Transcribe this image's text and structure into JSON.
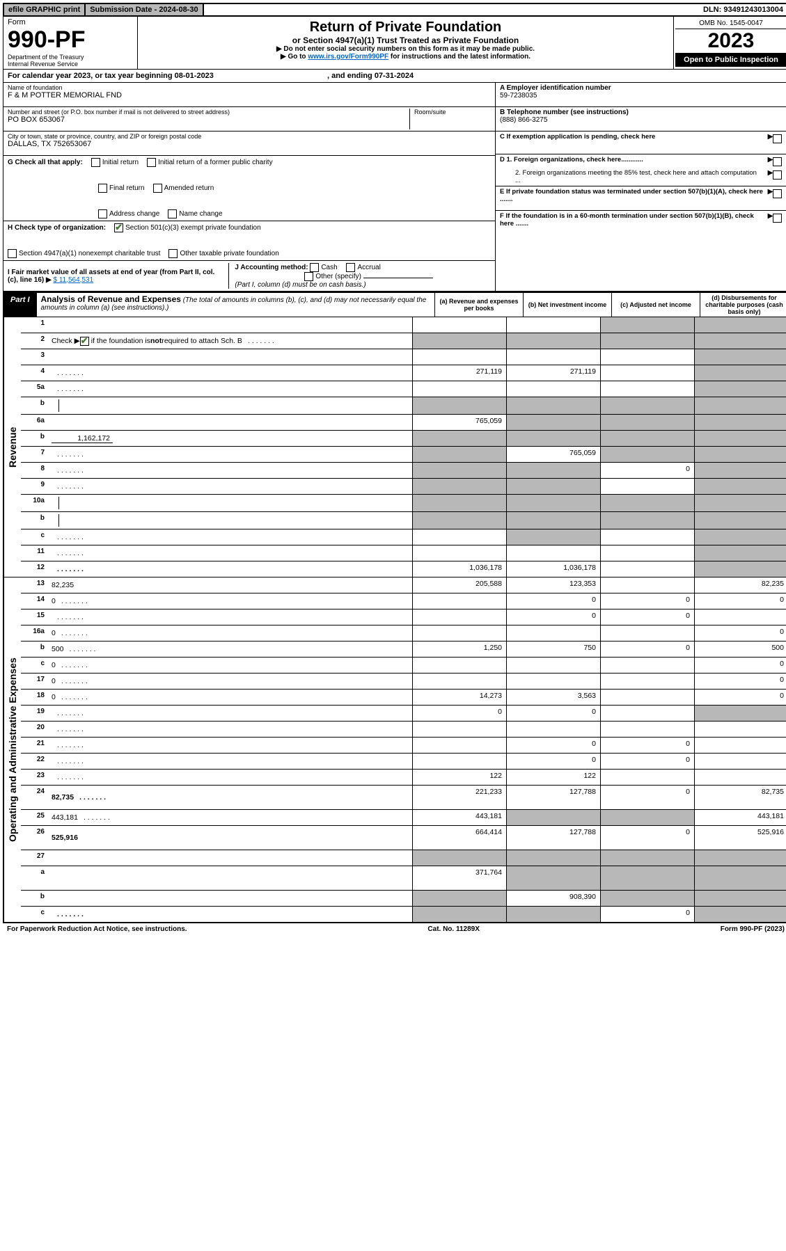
{
  "top": {
    "efile": "efile GRAPHIC print",
    "sub_label": "Submission Date - 2024-08-30",
    "dln": "DLN: 93491243013004"
  },
  "header": {
    "form_word": "Form",
    "form_no": "990-PF",
    "dept": "Department of the Treasury",
    "irs": "Internal Revenue Service",
    "title": "Return of Private Foundation",
    "subtitle": "or Section 4947(a)(1) Trust Treated as Private Foundation",
    "note1": "▶ Do not enter social security numbers on this form as it may be made public.",
    "note2_pre": "▶ Go to ",
    "note2_link": "www.irs.gov/Form990PF",
    "note2_post": " for instructions and the latest information.",
    "omb": "OMB No. 1545-0047",
    "year": "2023",
    "open": "Open to Public Inspection"
  },
  "cal": {
    "text_a": "For calendar year 2023, or tax year beginning 08-01-2023",
    "text_b": ", and ending 07-31-2024"
  },
  "info": {
    "name_lbl": "Name of foundation",
    "name": "F & M POTTER MEMORIAL FND",
    "addr_lbl": "Number and street (or P.O. box number if mail is not delivered to street address)",
    "room_lbl": "Room/suite",
    "addr": "PO BOX 653067",
    "city_lbl": "City or town, state or province, country, and ZIP or foreign postal code",
    "city": "DALLAS, TX  752653067",
    "a_lbl": "A Employer identification number",
    "a_val": "59-7238035",
    "b_lbl": "B Telephone number (see instructions)",
    "b_val": "(888) 866-3275",
    "c_lbl": "C If exemption application is pending, check here",
    "d1": "D 1. Foreign organizations, check here............",
    "d2": "2. Foreign organizations meeting the 85% test, check here and attach computation ...",
    "e": "E  If private foundation status was terminated under section 507(b)(1)(A), check here .......",
    "f": "F  If the foundation is in a 60-month termination under section 507(b)(1)(B), check here .......",
    "g_lbl": "G Check all that apply:",
    "g_opts": [
      "Initial return",
      "Initial return of a former public charity",
      "Final return",
      "Amended return",
      "Address change",
      "Name change"
    ],
    "h_lbl": "H Check type of organization:",
    "h1": "Section 501(c)(3) exempt private foundation",
    "h2": "Section 4947(a)(1) nonexempt charitable trust",
    "h3": "Other taxable private foundation",
    "i_lbl": "I Fair market value of all assets at end of year (from Part II, col. (c), line 16) ▶",
    "i_val": "$  11,564,531",
    "j_lbl": "J Accounting method:",
    "j_cash": "Cash",
    "j_acc": "Accrual",
    "j_other": "Other (specify)",
    "j_note": "(Part I, column (d) must be on cash basis.)"
  },
  "part1": {
    "label": "Part I",
    "title": "Analysis of Revenue and Expenses",
    "title_note": "(The total of amounts in columns (b), (c), and (d) may not necessarily equal the amounts in column (a) (see instructions).)",
    "col_a": "(a)   Revenue and expenses per books",
    "col_b": "(b)   Net investment income",
    "col_c": "(c)   Adjusted net income",
    "col_d": "(d)   Disbursements for charitable purposes (cash basis only)"
  },
  "side": {
    "revenue": "Revenue",
    "expenses": "Operating and Administrative Expenses"
  },
  "rows": [
    {
      "n": "1",
      "d": "",
      "a": "",
      "b": "",
      "c": "",
      "shade_c": true,
      "shade_d": true
    },
    {
      "n": "2",
      "d": "",
      "dots": true,
      "a": "",
      "b": "",
      "c": "",
      "shade_a": true,
      "shade_b": true,
      "shade_c": true,
      "shade_d": true,
      "check_in_desc": true
    },
    {
      "n": "3",
      "d": "",
      "a": "",
      "b": "",
      "c": "",
      "shade_d": true
    },
    {
      "n": "4",
      "d": "",
      "dots": true,
      "a": "271,119",
      "b": "271,119",
      "c": "",
      "shade_d": true
    },
    {
      "n": "5a",
      "d": "",
      "dots": true,
      "a": "",
      "b": "",
      "c": "",
      "shade_d": true
    },
    {
      "n": "b",
      "d": "",
      "inline": true,
      "a": "",
      "b": "",
      "c": "",
      "shade_a": true,
      "shade_b": true,
      "shade_c": true,
      "shade_d": true
    },
    {
      "n": "6a",
      "d": "",
      "a": "765,059",
      "b": "",
      "c": "",
      "shade_b": true,
      "shade_c": true,
      "shade_d": true
    },
    {
      "n": "b",
      "d": "",
      "inline_val": "1,162,172",
      "a": "",
      "b": "",
      "c": "",
      "shade_a": true,
      "shade_b": true,
      "shade_c": true,
      "shade_d": true
    },
    {
      "n": "7",
      "d": "",
      "dots": true,
      "a": "",
      "b": "765,059",
      "c": "",
      "shade_a": true,
      "shade_c": true,
      "shade_d": true
    },
    {
      "n": "8",
      "d": "",
      "dots": true,
      "a": "",
      "b": "",
      "c": "0",
      "shade_a": true,
      "shade_b": true,
      "shade_d": true
    },
    {
      "n": "9",
      "d": "",
      "dots": true,
      "a": "",
      "b": "",
      "c": "",
      "shade_a": true,
      "shade_b": true,
      "shade_d": true
    },
    {
      "n": "10a",
      "d": "",
      "inline": true,
      "a": "",
      "b": "",
      "c": "",
      "shade_a": true,
      "shade_b": true,
      "shade_c": true,
      "shade_d": true
    },
    {
      "n": "b",
      "d": "",
      "dots": true,
      "inline": true,
      "a": "",
      "b": "",
      "c": "",
      "shade_a": true,
      "shade_b": true,
      "shade_c": true,
      "shade_d": true
    },
    {
      "n": "c",
      "d": "",
      "dots": true,
      "a": "",
      "b": "",
      "c": "",
      "shade_b": true,
      "shade_d": true
    },
    {
      "n": "11",
      "d": "",
      "dots": true,
      "a": "",
      "b": "",
      "c": "",
      "shade_d": true
    },
    {
      "n": "12",
      "d": "",
      "dots": true,
      "bold": true,
      "a": "1,036,178",
      "b": "1,036,178",
      "c": "",
      "shade_d": true
    }
  ],
  "exp": [
    {
      "n": "13",
      "d": "82,235",
      "a": "205,588",
      "b": "123,353",
      "c": ""
    },
    {
      "n": "14",
      "d": "0",
      "dots": true,
      "a": "",
      "b": "0",
      "c": "0"
    },
    {
      "n": "15",
      "d": "",
      "dots": true,
      "a": "",
      "b": "0",
      "c": "0"
    },
    {
      "n": "16a",
      "d": "0",
      "dots": true,
      "a": "",
      "b": "",
      "c": ""
    },
    {
      "n": "b",
      "d": "500",
      "dots": true,
      "a": "1,250",
      "b": "750",
      "c": "0"
    },
    {
      "n": "c",
      "d": "0",
      "dots": true,
      "a": "",
      "b": "",
      "c": ""
    },
    {
      "n": "17",
      "d": "0",
      "dots": true,
      "a": "",
      "b": "",
      "c": ""
    },
    {
      "n": "18",
      "d": "0",
      "dots": true,
      "a": "14,273",
      "b": "3,563",
      "c": ""
    },
    {
      "n": "19",
      "d": "",
      "dots": true,
      "a": "0",
      "b": "0",
      "c": "",
      "shade_d": true
    },
    {
      "n": "20",
      "d": "",
      "dots": true,
      "a": "",
      "b": "",
      "c": ""
    },
    {
      "n": "21",
      "d": "",
      "dots": true,
      "a": "",
      "b": "0",
      "c": "0"
    },
    {
      "n": "22",
      "d": "",
      "dots": true,
      "a": "",
      "b": "0",
      "c": "0"
    },
    {
      "n": "23",
      "d": "",
      "dots": true,
      "a": "122",
      "b": "122",
      "c": ""
    },
    {
      "n": "24",
      "d": "82,735",
      "dots": true,
      "bold": true,
      "a": "221,233",
      "b": "127,788",
      "c": "0",
      "tall": true
    },
    {
      "n": "25",
      "d": "443,181",
      "dots": true,
      "a": "443,181",
      "b": "",
      "c": "",
      "shade_b": true,
      "shade_c": true
    },
    {
      "n": "26",
      "d": "525,916",
      "bold": true,
      "a": "664,414",
      "b": "127,788",
      "c": "0",
      "tall": true
    },
    {
      "n": "27",
      "d": "",
      "a": "",
      "b": "",
      "c": "",
      "shade_a": true,
      "shade_b": true,
      "shade_c": true,
      "shade_d": true
    },
    {
      "n": "a",
      "d": "",
      "bold": true,
      "a": "371,764",
      "b": "",
      "c": "",
      "shade_b": true,
      "shade_c": true,
      "shade_d": true,
      "tall": true
    },
    {
      "n": "b",
      "d": "",
      "bold": true,
      "a": "",
      "b": "908,390",
      "c": "",
      "shade_a": true,
      "shade_c": true,
      "shade_d": true
    },
    {
      "n": "c",
      "d": "",
      "dots": true,
      "bold": true,
      "a": "",
      "b": "",
      "c": "0",
      "shade_a": true,
      "shade_b": true,
      "shade_d": true
    }
  ],
  "footer": {
    "left": "For Paperwork Reduction Act Notice, see instructions.",
    "mid": "Cat. No. 11289X",
    "right": "Form 990-PF (2023)"
  }
}
